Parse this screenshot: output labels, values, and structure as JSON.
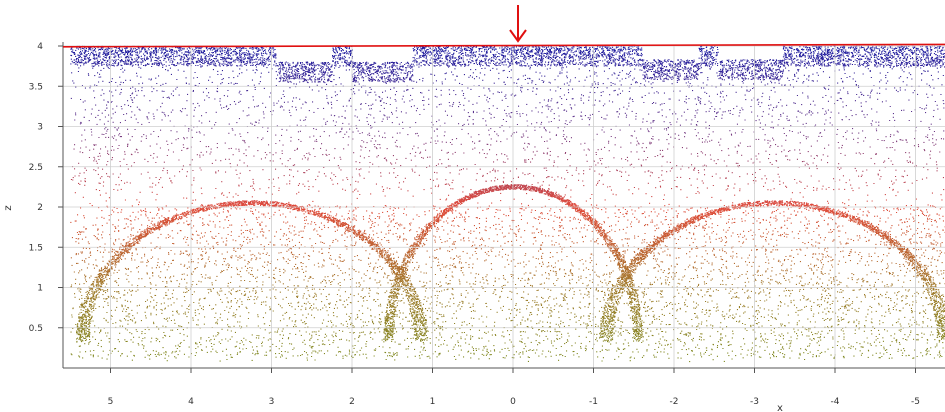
{
  "chart_data": {
    "type": "scatter",
    "title": "",
    "xlabel": "x",
    "ylabel": "z",
    "x_reversed": true,
    "xlim": [
      5.5,
      -5.4
    ],
    "ylim": [
      0,
      4.05
    ],
    "x_ticks": [
      5,
      4,
      3,
      2,
      1,
      0,
      -1,
      -2,
      -3,
      -4,
      -5
    ],
    "x_tick_labels": [
      "5",
      "4",
      "3",
      "2",
      "1",
      "0",
      "-1",
      "-2",
      "-3",
      "-4",
      "-5"
    ],
    "y_ticks": [
      0.5,
      1,
      1.5,
      2,
      2.5,
      3,
      3.5,
      4
    ],
    "y_tick_labels": [
      "0.5",
      "1",
      "1.5",
      "2",
      "2.5",
      "3",
      "3.5",
      "4"
    ],
    "grid": true,
    "colormap": {
      "by": "z",
      "stops": [
        {
          "z": 0.0,
          "color": "#7a8a1e"
        },
        {
          "z": 1.0,
          "color": "#a07a2a"
        },
        {
          "z": 2.0,
          "color": "#e04a3a"
        },
        {
          "z": 3.0,
          "color": "#6a3a8a"
        },
        {
          "z": 4.0,
          "color": "#1a1aa0"
        }
      ]
    },
    "top_band": {
      "ceiling_z": 4.0,
      "drops": [
        {
          "x_from": 2.95,
          "x_to": 2.25,
          "z": 3.8
        },
        {
          "x_from": 2.0,
          "x_to": 1.25,
          "z": 3.8
        },
        {
          "x_from": -1.6,
          "x_to": -2.3,
          "z": 3.83
        },
        {
          "x_from": -2.55,
          "x_to": -3.35,
          "z": 3.83
        }
      ]
    },
    "arcs": [
      {
        "center_x": 3.25,
        "radius": 2.1,
        "peak_z": 2.05
      },
      {
        "center_x": 0.0,
        "radius": 1.55,
        "peak_z": 2.25
      },
      {
        "center_x": -3.25,
        "radius": 2.1,
        "peak_z": 2.05
      }
    ],
    "reference_line": {
      "z_start": 3.99,
      "z_end": 4.02,
      "color": "#e01010"
    },
    "marker_arrow": {
      "x": 0.0,
      "color": "#e01010"
    }
  }
}
